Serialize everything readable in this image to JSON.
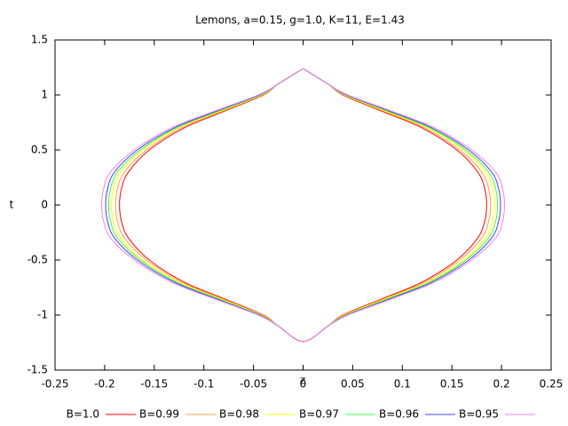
{
  "chart_data": {
    "type": "line",
    "title": "Lemons, a=0.15, g=1.0, K=11, E=1.43",
    "x_label": "z",
    "y_label": "t",
    "xlim": [
      -0.25,
      0.25
    ],
    "xticks": [
      -0.25,
      -0.2,
      -0.15,
      -0.1,
      -0.05,
      0,
      0.05,
      0.1,
      0.15,
      0.2,
      0.25
    ],
    "ylim": [
      -1.5,
      1.5
    ],
    "yticks": [
      -1.5,
      -1,
      -0.5,
      0,
      0.5,
      1,
      1.5
    ],
    "legend": "bottom",
    "series": [
      {
        "name": "B=1.0",
        "color": "#ff0000",
        "x": [
          0,
          0.025,
          0.04,
          0.08,
          0.12,
          0.155,
          0.176,
          0.183,
          0.185,
          0.183,
          0.176,
          0.155,
          0.12,
          0.08,
          0.04,
          0.025,
          0,
          -0.025,
          -0.04,
          -0.08,
          -0.12,
          -0.155,
          -0.176,
          -0.183,
          -0.185,
          -0.183,
          -0.176,
          -0.155,
          -0.12,
          -0.08,
          -0.04,
          -0.025,
          0
        ],
        "values": [
          1.24,
          1.1,
          1.0,
          0.85,
          0.7,
          0.5,
          0.3,
          0.15,
          0,
          -0.15,
          -0.3,
          -0.5,
          -0.7,
          -0.85,
          -1.0,
          -1.1,
          -1.24,
          -1.1,
          -1.0,
          -0.85,
          -0.7,
          -0.5,
          -0.3,
          -0.15,
          0,
          0.15,
          0.3,
          0.5,
          0.7,
          0.85,
          1.0,
          1.1,
          1.24
        ]
      },
      {
        "name": "B=0.99",
        "color": "#ffa040",
        "x": [
          0,
          0.025,
          0.041,
          0.082,
          0.123,
          0.158,
          0.18,
          0.187,
          0.189,
          0.187,
          0.18,
          0.158,
          0.123,
          0.082,
          0.041,
          0.025,
          0,
          -0.025,
          -0.041,
          -0.082,
          -0.123,
          -0.158,
          -0.18,
          -0.187,
          -0.189,
          -0.187,
          -0.18,
          -0.158,
          -0.123,
          -0.082,
          -0.041,
          -0.025,
          0
        ],
        "values": [
          1.24,
          1.1,
          1.0,
          0.85,
          0.7,
          0.5,
          0.3,
          0.15,
          0,
          -0.15,
          -0.3,
          -0.5,
          -0.7,
          -0.85,
          -1.0,
          -1.1,
          -1.24,
          -1.1,
          -1.0,
          -0.85,
          -0.7,
          -0.5,
          -0.3,
          -0.15,
          0,
          0.15,
          0.3,
          0.5,
          0.7,
          0.85,
          1.0,
          1.1,
          1.24
        ]
      },
      {
        "name": "B=0.98",
        "color": "#ffff00",
        "x": [
          0,
          0.025,
          0.042,
          0.084,
          0.126,
          0.162,
          0.184,
          0.191,
          0.193,
          0.191,
          0.184,
          0.162,
          0.126,
          0.084,
          0.042,
          0.025,
          0,
          -0.025,
          -0.042,
          -0.084,
          -0.126,
          -0.162,
          -0.184,
          -0.191,
          -0.193,
          -0.191,
          -0.184,
          -0.162,
          -0.126,
          -0.084,
          -0.042,
          -0.025,
          0
        ],
        "values": [
          1.24,
          1.1,
          1.0,
          0.85,
          0.7,
          0.5,
          0.3,
          0.15,
          0,
          -0.15,
          -0.3,
          -0.5,
          -0.7,
          -0.85,
          -1.0,
          -1.1,
          -1.24,
          -1.1,
          -1.0,
          -0.85,
          -0.7,
          -0.5,
          -0.3,
          -0.15,
          0,
          0.15,
          0.3,
          0.5,
          0.7,
          0.85,
          1.0,
          1.1,
          1.24
        ]
      },
      {
        "name": "B=0.97",
        "color": "#40ff40",
        "x": [
          0,
          0.025,
          0.043,
          0.086,
          0.128,
          0.164,
          0.187,
          0.194,
          0.196,
          0.194,
          0.187,
          0.164,
          0.128,
          0.086,
          0.043,
          0.025,
          0,
          -0.025,
          -0.043,
          -0.086,
          -0.128,
          -0.164,
          -0.187,
          -0.194,
          -0.196,
          -0.194,
          -0.187,
          -0.164,
          -0.128,
          -0.086,
          -0.043,
          -0.025,
          0
        ],
        "values": [
          1.24,
          1.1,
          1.0,
          0.85,
          0.7,
          0.5,
          0.3,
          0.15,
          0,
          -0.15,
          -0.3,
          -0.5,
          -0.7,
          -0.85,
          -1.0,
          -1.1,
          -1.24,
          -1.1,
          -1.0,
          -0.85,
          -0.7,
          -0.5,
          -0.3,
          -0.15,
          0,
          0.15,
          0.3,
          0.5,
          0.7,
          0.85,
          1.0,
          1.1,
          1.24
        ]
      },
      {
        "name": "B=0.96",
        "color": "#4040ff",
        "x": [
          0,
          0.025,
          0.044,
          0.088,
          0.13,
          0.167,
          0.19,
          0.197,
          0.199,
          0.197,
          0.19,
          0.167,
          0.13,
          0.088,
          0.044,
          0.025,
          0,
          -0.025,
          -0.044,
          -0.088,
          -0.13,
          -0.167,
          -0.19,
          -0.197,
          -0.199,
          -0.197,
          -0.19,
          -0.167,
          -0.13,
          -0.088,
          -0.044,
          -0.025,
          0
        ],
        "values": [
          1.24,
          1.1,
          1.0,
          0.85,
          0.7,
          0.5,
          0.3,
          0.15,
          0,
          -0.15,
          -0.3,
          -0.5,
          -0.7,
          -0.85,
          -1.0,
          -1.1,
          -1.24,
          -1.1,
          -1.0,
          -0.85,
          -0.7,
          -0.5,
          -0.3,
          -0.15,
          0,
          0.15,
          0.3,
          0.5,
          0.7,
          0.85,
          1.0,
          1.1,
          1.24
        ]
      },
      {
        "name": "B=0.95",
        "color": "#ee82ee",
        "x": [
          0,
          0.025,
          0.045,
          0.09,
          0.133,
          0.17,
          0.194,
          0.201,
          0.203,
          0.201,
          0.194,
          0.17,
          0.133,
          0.09,
          0.045,
          0.025,
          0,
          -0.025,
          -0.045,
          -0.09,
          -0.133,
          -0.17,
          -0.194,
          -0.201,
          -0.203,
          -0.201,
          -0.194,
          -0.17,
          -0.133,
          -0.09,
          -0.045,
          -0.025,
          0
        ],
        "values": [
          1.24,
          1.1,
          1.0,
          0.85,
          0.7,
          0.5,
          0.3,
          0.15,
          0,
          -0.15,
          -0.3,
          -0.5,
          -0.7,
          -0.85,
          -1.0,
          -1.1,
          -1.24,
          -1.1,
          -1.0,
          -0.85,
          -0.7,
          -0.5,
          -0.3,
          -0.15,
          0,
          0.15,
          0.3,
          0.5,
          0.7,
          0.85,
          1.0,
          1.1,
          1.24
        ]
      }
    ]
  }
}
